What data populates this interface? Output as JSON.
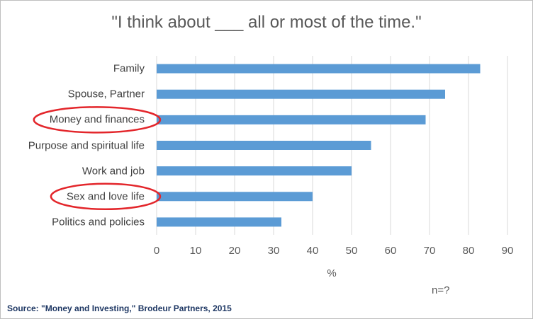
{
  "chart_data": {
    "type": "bar",
    "orientation": "horizontal",
    "title": "\"I think about ___  all or most of the time.\"",
    "xlabel": "%",
    "note": "n=?",
    "source": "Source: \"Money and Investing,\" Brodeur Partners, 2015",
    "categories": [
      "Family",
      "Spouse, Partner",
      "Money and finances",
      "Purpose and spiritual life",
      "Work and job",
      "Sex and love life",
      "Politics and policies"
    ],
    "values": [
      83,
      74,
      69,
      55,
      50,
      40,
      32
    ],
    "xlim": [
      0,
      90
    ],
    "xticks": [
      "0",
      "10",
      "20",
      "30",
      "40",
      "50",
      "60",
      "70",
      "80",
      "90"
    ],
    "grid": true,
    "bar_color": "#5b9bd5",
    "highlighted_categories": [
      "Money and finances",
      "Sex and love life"
    ],
    "highlight_color": "#e3262b"
  }
}
